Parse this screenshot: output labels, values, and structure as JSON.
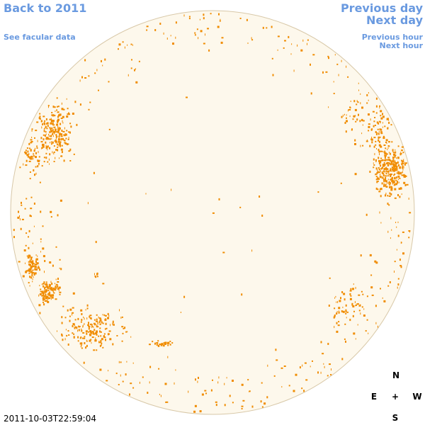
{
  "header": {
    "back_link": "Back to 2011",
    "facular_link": "See facular data",
    "previous_day": "Previous day",
    "next_day": "Next day",
    "previous_hour": "Previous hour",
    "next_hour": "Next hour"
  },
  "footer": {
    "timestamp": "2011-10-03T22:59:04"
  },
  "compass": {
    "north": "N",
    "east": "E",
    "center": "+",
    "west": "W",
    "south": "S"
  }
}
